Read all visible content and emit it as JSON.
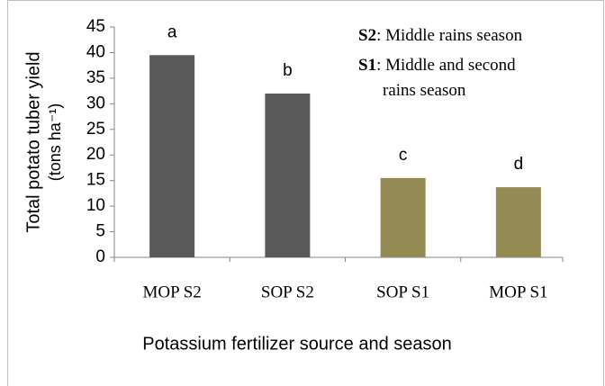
{
  "chart_data": {
    "type": "bar",
    "xlabel": "Potassium fertilizer source and season",
    "ylabel": [
      "Total potato tuber yield",
      "(tons ha⁻¹)"
    ],
    "categories": [
      "MOP S2",
      "SOP S2",
      "SOP S1",
      "MOP S1"
    ],
    "values": [
      39.5,
      32,
      15.5,
      13.7
    ],
    "colors": [
      "#595959",
      "#595959",
      "#948a54",
      "#948a54"
    ],
    "letters": [
      "a",
      "b",
      "c",
      "d"
    ],
    "ylim": [
      0,
      45
    ],
    "yticks": [
      0,
      5,
      10,
      15,
      20,
      25,
      30,
      35,
      40,
      45
    ],
    "annotations": [
      {
        "bold": "S2",
        "text": ": Middle rains season"
      },
      {
        "bold": "S1",
        "text": ":  Middle and second"
      },
      {
        "text": "rains season"
      }
    ]
  }
}
